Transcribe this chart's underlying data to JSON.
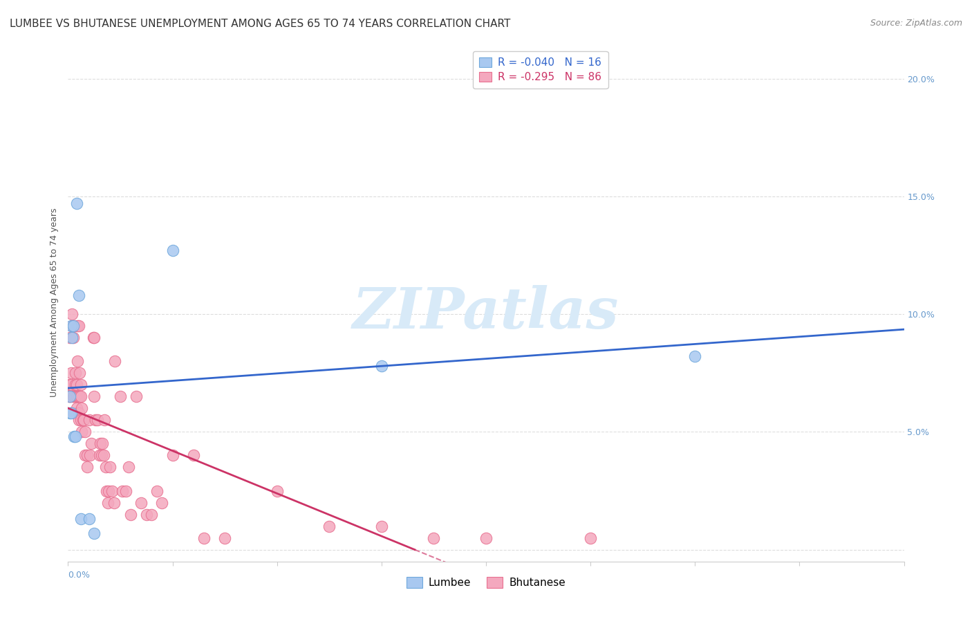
{
  "title": "LUMBEE VS BHUTANESE UNEMPLOYMENT AMONG AGES 65 TO 74 YEARS CORRELATION CHART",
  "source": "Source: ZipAtlas.com",
  "ylabel": "Unemployment Among Ages 65 to 74 years",
  "xlim": [
    0,
    0.8
  ],
  "ylim": [
    -0.005,
    0.215
  ],
  "lumbee_R": -0.04,
  "lumbee_N": 16,
  "bhutanese_R": -0.295,
  "bhutanese_N": 86,
  "lumbee_color": "#A8C8F0",
  "bhutanese_color": "#F4A8BE",
  "lumbee_edge_color": "#6FA8DC",
  "bhutanese_edge_color": "#E87090",
  "regression_lumbee_color": "#3366CC",
  "regression_bhutanese_color": "#CC3366",
  "watermark_color": "#D8EAF8",
  "background_color": "#FFFFFF",
  "grid_color": "#DDDDDD",
  "right_tick_color": "#6699CC",
  "yticks": [
    0.0,
    0.05,
    0.1,
    0.15,
    0.2
  ],
  "ytick_labels": [
    "",
    "5.0%",
    "10.0%",
    "15.0%",
    "20.0%"
  ],
  "title_fontsize": 11,
  "source_fontsize": 9,
  "axis_label_fontsize": 9,
  "tick_fontsize": 9,
  "legend_fontsize": 11,
  "lumbee_x": [
    0.002,
    0.002,
    0.003,
    0.003,
    0.004,
    0.005,
    0.006,
    0.007,
    0.008,
    0.01,
    0.012,
    0.02,
    0.025,
    0.1,
    0.3,
    0.6
  ],
  "lumbee_y": [
    0.065,
    0.058,
    0.095,
    0.058,
    0.09,
    0.095,
    0.048,
    0.048,
    0.147,
    0.108,
    0.013,
    0.013,
    0.007,
    0.127,
    0.078,
    0.082
  ],
  "bhutanese_x": [
    0.001,
    0.001,
    0.002,
    0.002,
    0.003,
    0.003,
    0.003,
    0.004,
    0.004,
    0.005,
    0.005,
    0.005,
    0.006,
    0.006,
    0.006,
    0.007,
    0.007,
    0.007,
    0.007,
    0.008,
    0.008,
    0.008,
    0.009,
    0.009,
    0.009,
    0.01,
    0.01,
    0.01,
    0.01,
    0.011,
    0.011,
    0.012,
    0.012,
    0.012,
    0.013,
    0.013,
    0.014,
    0.015,
    0.015,
    0.016,
    0.016,
    0.018,
    0.018,
    0.02,
    0.021,
    0.022,
    0.024,
    0.025,
    0.025,
    0.026,
    0.028,
    0.03,
    0.031,
    0.032,
    0.033,
    0.034,
    0.035,
    0.036,
    0.037,
    0.038,
    0.039,
    0.04,
    0.042,
    0.044,
    0.045,
    0.05,
    0.052,
    0.055,
    0.058,
    0.06,
    0.065,
    0.07,
    0.075,
    0.08,
    0.085,
    0.09,
    0.1,
    0.12,
    0.13,
    0.15,
    0.2,
    0.25,
    0.3,
    0.35,
    0.4,
    0.5
  ],
  "bhutanese_y": [
    0.065,
    0.07,
    0.09,
    0.065,
    0.075,
    0.07,
    0.065,
    0.095,
    0.1,
    0.065,
    0.065,
    0.09,
    0.065,
    0.058,
    0.095,
    0.075,
    0.065,
    0.07,
    0.065,
    0.07,
    0.065,
    0.06,
    0.08,
    0.065,
    0.095,
    0.095,
    0.058,
    0.065,
    0.055,
    0.075,
    0.065,
    0.07,
    0.055,
    0.065,
    0.06,
    0.05,
    0.055,
    0.055,
    0.055,
    0.05,
    0.04,
    0.04,
    0.035,
    0.055,
    0.04,
    0.045,
    0.09,
    0.065,
    0.09,
    0.055,
    0.055,
    0.04,
    0.045,
    0.04,
    0.045,
    0.04,
    0.055,
    0.035,
    0.025,
    0.02,
    0.025,
    0.035,
    0.025,
    0.02,
    0.08,
    0.065,
    0.025,
    0.025,
    0.035,
    0.015,
    0.065,
    0.02,
    0.015,
    0.015,
    0.025,
    0.02,
    0.04,
    0.04,
    0.005,
    0.005,
    0.025,
    0.01,
    0.01,
    0.005,
    0.005,
    0.005
  ]
}
